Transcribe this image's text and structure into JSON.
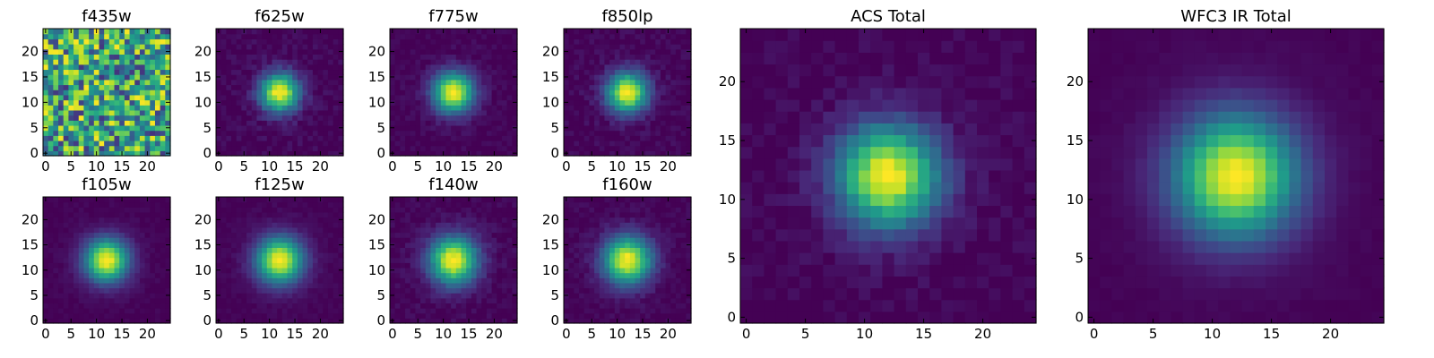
{
  "chart_data": [
    {
      "type": "heatmap",
      "title": "f435w",
      "kind": "noise",
      "sigma": 0,
      "seed": 11,
      "xticks": [
        0,
        5,
        10,
        15,
        20
      ],
      "yticks": [
        0,
        5,
        10,
        15,
        20
      ],
      "xlim": [
        -0.5,
        24.5
      ],
      "ylim": [
        -0.5,
        24.5
      ],
      "grid_size": 25,
      "colormap": "viridis"
    },
    {
      "type": "heatmap",
      "title": "f625w",
      "kind": "psf",
      "sigma": 2.6,
      "noise": 0.05,
      "seed": 23,
      "xticks": [
        0,
        5,
        10,
        15,
        20
      ],
      "yticks": [
        0,
        5,
        10,
        15,
        20
      ],
      "xlim": [
        -0.5,
        24.5
      ],
      "ylim": [
        -0.5,
        24.5
      ],
      "grid_size": 25,
      "colormap": "viridis"
    },
    {
      "type": "heatmap",
      "title": "f775w",
      "kind": "psf",
      "sigma": 2.7,
      "noise": 0.035,
      "seed": 37,
      "xticks": [
        0,
        5,
        10,
        15,
        20
      ],
      "yticks": [
        0,
        5,
        10,
        15,
        20
      ],
      "xlim": [
        -0.5,
        24.5
      ],
      "ylim": [
        -0.5,
        24.5
      ],
      "grid_size": 25,
      "colormap": "viridis"
    },
    {
      "type": "heatmap",
      "title": "f850lp",
      "kind": "psf",
      "sigma": 2.7,
      "noise": 0.045,
      "seed": 41,
      "xticks": [
        0,
        5,
        10,
        15,
        20
      ],
      "yticks": [
        0,
        5,
        10,
        15,
        20
      ],
      "xlim": [
        -0.5,
        24.5
      ],
      "ylim": [
        -0.5,
        24.5
      ],
      "grid_size": 25,
      "colormap": "viridis"
    },
    {
      "type": "heatmap",
      "title": "f105w",
      "kind": "psf",
      "sigma": 2.9,
      "noise": 0.02,
      "seed": 53,
      "xticks": [
        0,
        5,
        10,
        15,
        20
      ],
      "yticks": [
        0,
        5,
        10,
        15,
        20
      ],
      "xlim": [
        -0.5,
        24.5
      ],
      "ylim": [
        -0.5,
        24.5
      ],
      "grid_size": 25,
      "colormap": "viridis"
    },
    {
      "type": "heatmap",
      "title": "f125w",
      "kind": "psf",
      "sigma": 3.1,
      "noise": 0.02,
      "seed": 61,
      "xticks": [
        0,
        5,
        10,
        15,
        20
      ],
      "yticks": [
        0,
        5,
        10,
        15,
        20
      ],
      "xlim": [
        -0.5,
        24.5
      ],
      "ylim": [
        -0.5,
        24.5
      ],
      "grid_size": 25,
      "colormap": "viridis"
    },
    {
      "type": "heatmap",
      "title": "f140w",
      "kind": "psf",
      "sigma": 3.2,
      "noise": 0.04,
      "seed": 71,
      "xticks": [
        0,
        5,
        10,
        15,
        20
      ],
      "yticks": [
        0,
        5,
        10,
        15,
        20
      ],
      "xlim": [
        -0.5,
        24.5
      ],
      "ylim": [
        -0.5,
        24.5
      ],
      "grid_size": 25,
      "colormap": "viridis"
    },
    {
      "type": "heatmap",
      "title": "f160w",
      "kind": "psf",
      "sigma": 3.2,
      "noise": 0.035,
      "seed": 83,
      "xticks": [
        0,
        5,
        10,
        15,
        20
      ],
      "yticks": [
        0,
        5,
        10,
        15,
        20
      ],
      "xlim": [
        -0.5,
        24.5
      ],
      "ylim": [
        -0.5,
        24.5
      ],
      "grid_size": 25,
      "colormap": "viridis"
    },
    {
      "type": "heatmap",
      "title": "ACS Total",
      "kind": "psf",
      "sigma": 2.9,
      "noise": 0.04,
      "seed": 97,
      "xticks": [
        0,
        5,
        10,
        15,
        20
      ],
      "yticks": [
        0,
        5,
        10,
        15,
        20
      ],
      "xlim": [
        -0.5,
        24.5
      ],
      "ylim": [
        -0.5,
        24.5
      ],
      "grid_size": 25,
      "colormap": "viridis"
    },
    {
      "type": "heatmap",
      "title": "WFC3 IR Total",
      "kind": "psf",
      "sigma": 3.5,
      "noise": 0.01,
      "seed": 101,
      "xticks": [
        0,
        5,
        10,
        15,
        20
      ],
      "yticks": [
        0,
        5,
        10,
        15,
        20
      ],
      "xlim": [
        -0.5,
        24.5
      ],
      "ylim": [
        -0.5,
        24.5
      ],
      "grid_size": 25,
      "colormap": "viridis"
    }
  ]
}
